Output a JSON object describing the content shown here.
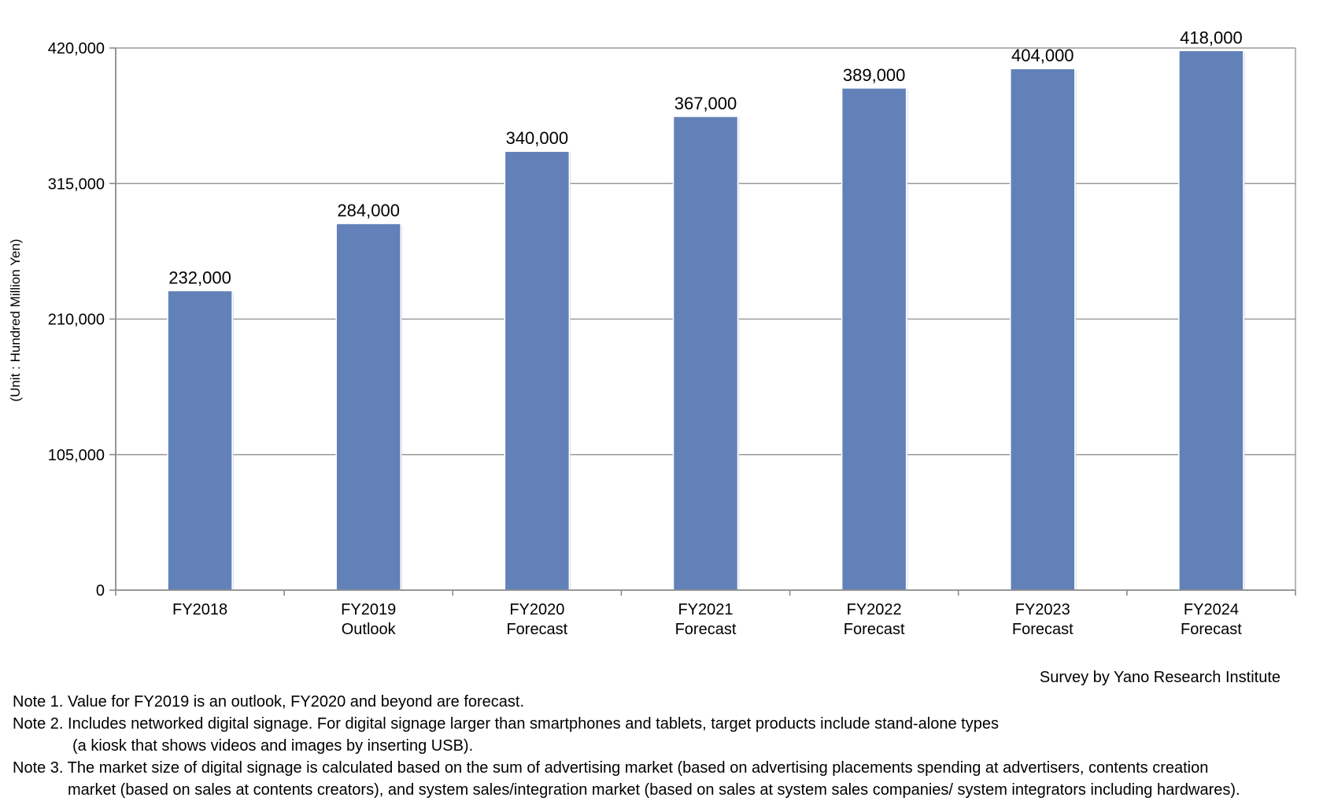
{
  "chart_data": {
    "type": "bar",
    "title": "",
    "xlabel": "",
    "ylabel": "(Unit : Hundred Million Yen)",
    "ylim": [
      0,
      420000
    ],
    "yticks": [
      0,
      105000,
      210000,
      315000,
      420000
    ],
    "ytick_labels": [
      "0",
      "105,000",
      "210,000",
      "315,000",
      "420,000"
    ],
    "grid": true,
    "categories": [
      [
        "FY2018",
        ""
      ],
      [
        "FY2019",
        "Outlook"
      ],
      [
        "FY2020",
        "Forecast"
      ],
      [
        "FY2021",
        "Forecast"
      ],
      [
        "FY2022",
        "Forecast"
      ],
      [
        "FY2023",
        "Forecast"
      ],
      [
        "FY2024",
        "Forecast"
      ]
    ],
    "values": [
      232000,
      284000,
      340000,
      367000,
      389000,
      404000,
      418000
    ],
    "value_labels": [
      "232,000",
      "284,000",
      "340,000",
      "367,000",
      "389,000",
      "404,000",
      "418,000"
    ],
    "bar_color": "#6281b9",
    "grid_color": "#9a9a9a",
    "axis_color": "#8a8a8a"
  },
  "source": "Survey by Yano Research Institute",
  "notes": {
    "note1": "Note 1. Value for FY2019 is an outlook, FY2020 and beyond are forecast.",
    "note2a": "Note 2. Includes networked digital signage. For digital signage larger than smartphones and tablets, target products include stand-alone types",
    "note2b": "(a kiosk that shows videos and images by inserting USB).",
    "note3a": "Note 3. The market size of digital signage is calculated based on the sum of advertising market (based on advertising placements spending at advertisers, contents creation",
    "note3b": "market (based on sales at contents creators), and system sales/integration market (based on sales at system sales companies/ system integrators including hardwares)."
  }
}
